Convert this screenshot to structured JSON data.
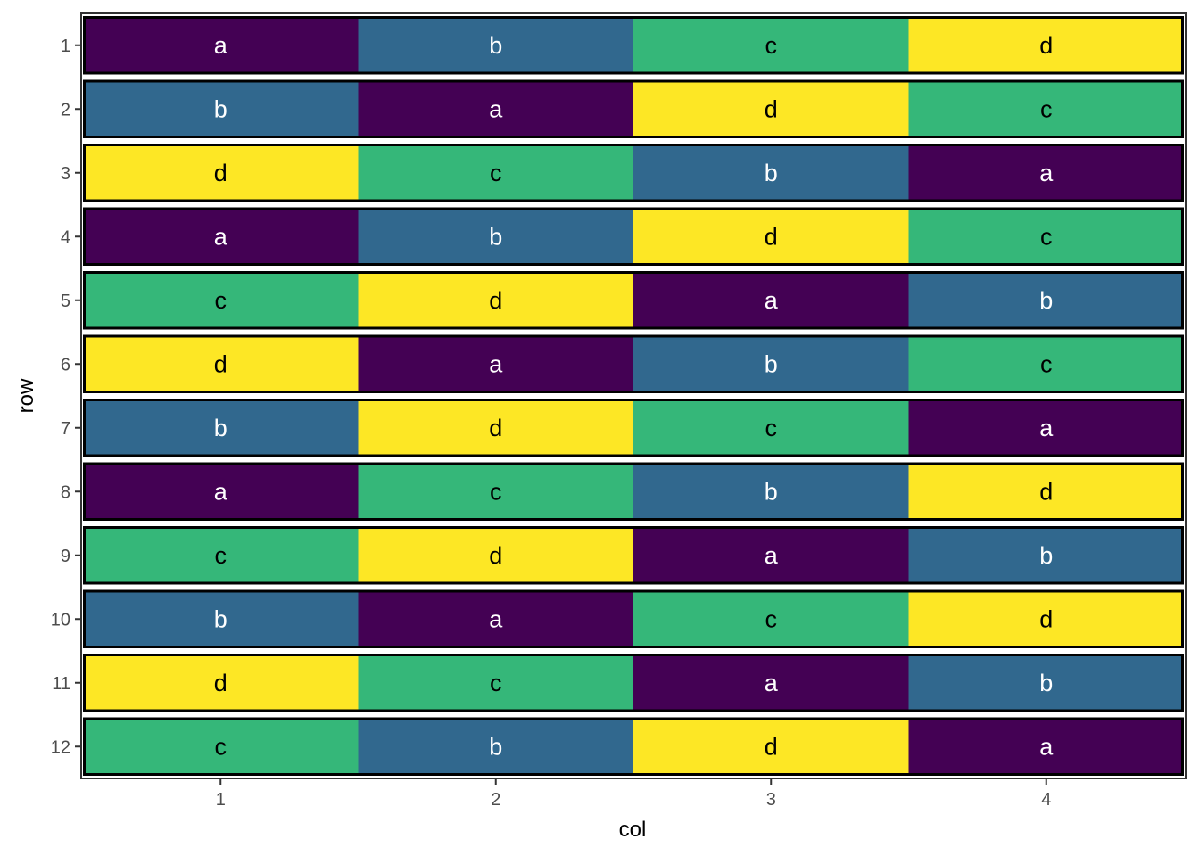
{
  "chart_data": {
    "type": "heatmap",
    "title": "",
    "xlabel": "col",
    "ylabel": "row",
    "x_categories": [
      "1",
      "2",
      "3",
      "4"
    ],
    "y_categories": [
      "1",
      "2",
      "3",
      "4",
      "5",
      "6",
      "7",
      "8",
      "9",
      "10",
      "11",
      "12"
    ],
    "grid": false,
    "legend": "none",
    "palette": {
      "a": "#440154",
      "b": "#31688E",
      "c": "#35B779",
      "d": "#FDE725"
    },
    "label_colors": {
      "a": "#FFFFFF",
      "b": "#FFFFFF",
      "c": "#000000",
      "d": "#000000"
    },
    "row_outline_color": "#000000",
    "cells": [
      [
        "a",
        "b",
        "c",
        "d"
      ],
      [
        "b",
        "a",
        "d",
        "c"
      ],
      [
        "d",
        "c",
        "b",
        "a"
      ],
      [
        "a",
        "b",
        "d",
        "c"
      ],
      [
        "c",
        "d",
        "a",
        "b"
      ],
      [
        "d",
        "a",
        "b",
        "c"
      ],
      [
        "b",
        "d",
        "c",
        "a"
      ],
      [
        "a",
        "c",
        "b",
        "d"
      ],
      [
        "c",
        "d",
        "a",
        "b"
      ],
      [
        "b",
        "a",
        "c",
        "d"
      ],
      [
        "d",
        "c",
        "a",
        "b"
      ],
      [
        "c",
        "b",
        "d",
        "a"
      ]
    ]
  }
}
